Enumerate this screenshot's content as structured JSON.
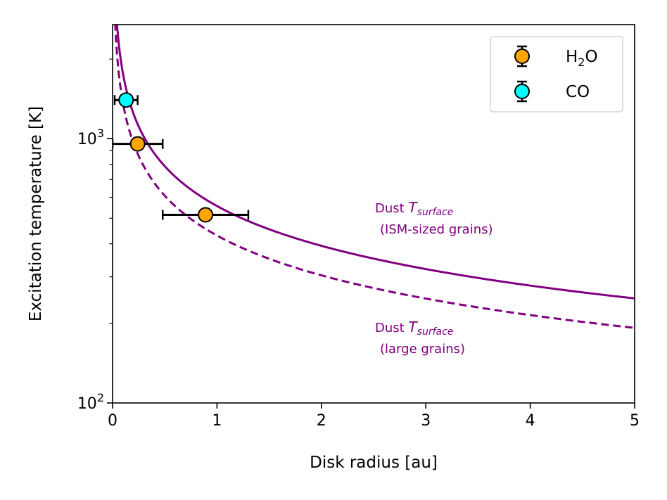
{
  "chart_data": {
    "type": "scatter",
    "xlabel": "Disk radius [au]",
    "ylabel": "Excitation temperature [K]",
    "xlim": [
      0,
      5
    ],
    "ylim": [
      100,
      2700
    ],
    "yscale": "log",
    "grid": false,
    "legend_placement": "top-right",
    "x_ticks": [
      {
        "value": 0,
        "label": "0"
      },
      {
        "value": 1,
        "label": "1"
      },
      {
        "value": 2,
        "label": "2"
      },
      {
        "value": 3,
        "label": "3"
      },
      {
        "value": 4,
        "label": "4"
      },
      {
        "value": 5,
        "label": "5"
      }
    ],
    "y_ticks": [
      {
        "value": 100,
        "base": "10",
        "exp": "2"
      },
      {
        "value": 1000,
        "base": "10",
        "exp": "3"
      }
    ],
    "series": [
      {
        "name_main": "H",
        "name_sub": "2",
        "name_rest": "O",
        "color": "#ffa500",
        "points": [
          {
            "x": 0.24,
            "y": 955,
            "xerr": [
              0.24,
              0.24
            ]
          },
          {
            "x": 0.89,
            "y": 515,
            "xerr": [
              0.41,
              0.41
            ]
          }
        ]
      },
      {
        "name_main": "CO",
        "name_sub": "",
        "name_rest": "",
        "color": "#00ffff",
        "points": [
          {
            "x": 0.13,
            "y": 1400,
            "xerr": [
              0.11,
              0.11
            ]
          }
        ]
      }
    ],
    "curves": [
      {
        "id": "ism-sized",
        "style": "solid",
        "color": "#800080",
        "T_at_1au": 556,
        "power": -0.5,
        "label_prefix": "Dust ",
        "label_var": "T",
        "label_sub": "surface",
        "label_line2": "(ISM-sized grains)"
      },
      {
        "id": "large",
        "style": "dashed",
        "color": "#800080",
        "T_at_1au": 430,
        "power": -0.5,
        "label_prefix": "Dust ",
        "label_var": "T",
        "label_sub": "surface",
        "label_line2": "(large grains)"
      }
    ]
  }
}
